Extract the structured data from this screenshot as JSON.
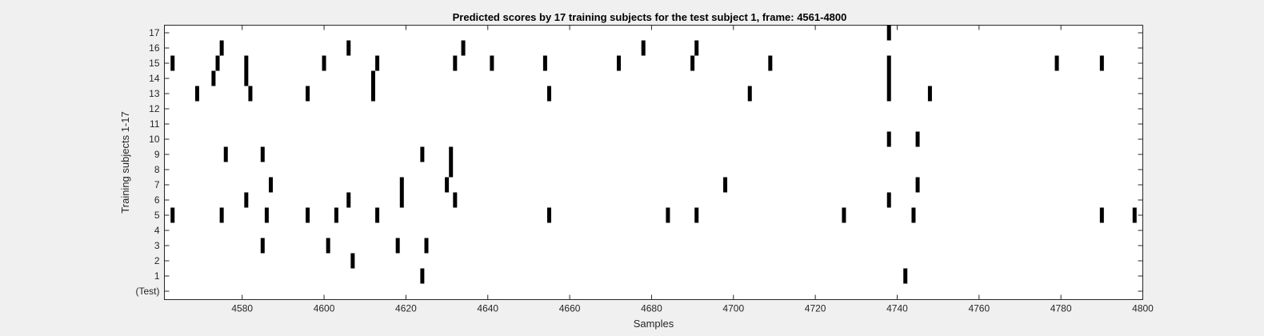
{
  "chart_data": {
    "type": "scatter",
    "title": "Predicted scores by 17 training subjects for the test subject 1, frame: 4561-4800",
    "xlabel": "Samples",
    "ylabel": "Training subjects 1-17",
    "xlim": [
      4561,
      4800
    ],
    "xticks": [
      4580,
      4600,
      4620,
      4640,
      4660,
      4680,
      4700,
      4720,
      4740,
      4760,
      4780,
      4800
    ],
    "yticks": [
      0,
      1,
      2,
      3,
      4,
      5,
      6,
      7,
      8,
      9,
      10,
      11,
      12,
      13,
      14,
      15,
      16,
      17
    ],
    "ytick_labels": [
      "(Test)",
      "1",
      "2",
      "3",
      "4",
      "5",
      "6",
      "7",
      "8",
      "9",
      "10",
      "11",
      "12",
      "13",
      "14",
      "15",
      "16",
      "17"
    ],
    "mark_color": "#000000",
    "grid": false,
    "series": [
      {
        "subject": 1,
        "x": [
          4624,
          4742
        ]
      },
      {
        "subject": 2,
        "x": [
          4607
        ]
      },
      {
        "subject": 3,
        "x": [
          4585,
          4601,
          4618,
          4625
        ]
      },
      {
        "subject": 4,
        "x": []
      },
      {
        "subject": 5,
        "x": [
          4563,
          4575,
          4586,
          4596,
          4603,
          4613,
          4655,
          4684,
          4691,
          4727,
          4744,
          4790,
          4798
        ]
      },
      {
        "subject": 6,
        "x": [
          4581,
          4606,
          4619,
          4632,
          4738
        ]
      },
      {
        "subject": 7,
        "x": [
          4587,
          4619,
          4630,
          4698,
          4745
        ]
      },
      {
        "subject": 8,
        "x": [
          4631
        ]
      },
      {
        "subject": 9,
        "x": [
          4576,
          4585,
          4624,
          4631
        ]
      },
      {
        "subject": 10,
        "x": [
          4738,
          4745
        ]
      },
      {
        "subject": 11,
        "x": []
      },
      {
        "subject": 12,
        "x": []
      },
      {
        "subject": 13,
        "x": [
          4569,
          4582,
          4596,
          4612,
          4655,
          4704,
          4738,
          4748
        ]
      },
      {
        "subject": 14,
        "x": [
          4573,
          4581,
          4612,
          4738
        ]
      },
      {
        "subject": 15,
        "x": [
          4563,
          4574,
          4581,
          4600,
          4613,
          4632,
          4641,
          4654,
          4672,
          4690,
          4709,
          4738,
          4779,
          4790
        ]
      },
      {
        "subject": 16,
        "x": [
          4575,
          4606,
          4634,
          4678,
          4691
        ]
      },
      {
        "subject": 17,
        "x": [
          4738
        ]
      }
    ]
  }
}
